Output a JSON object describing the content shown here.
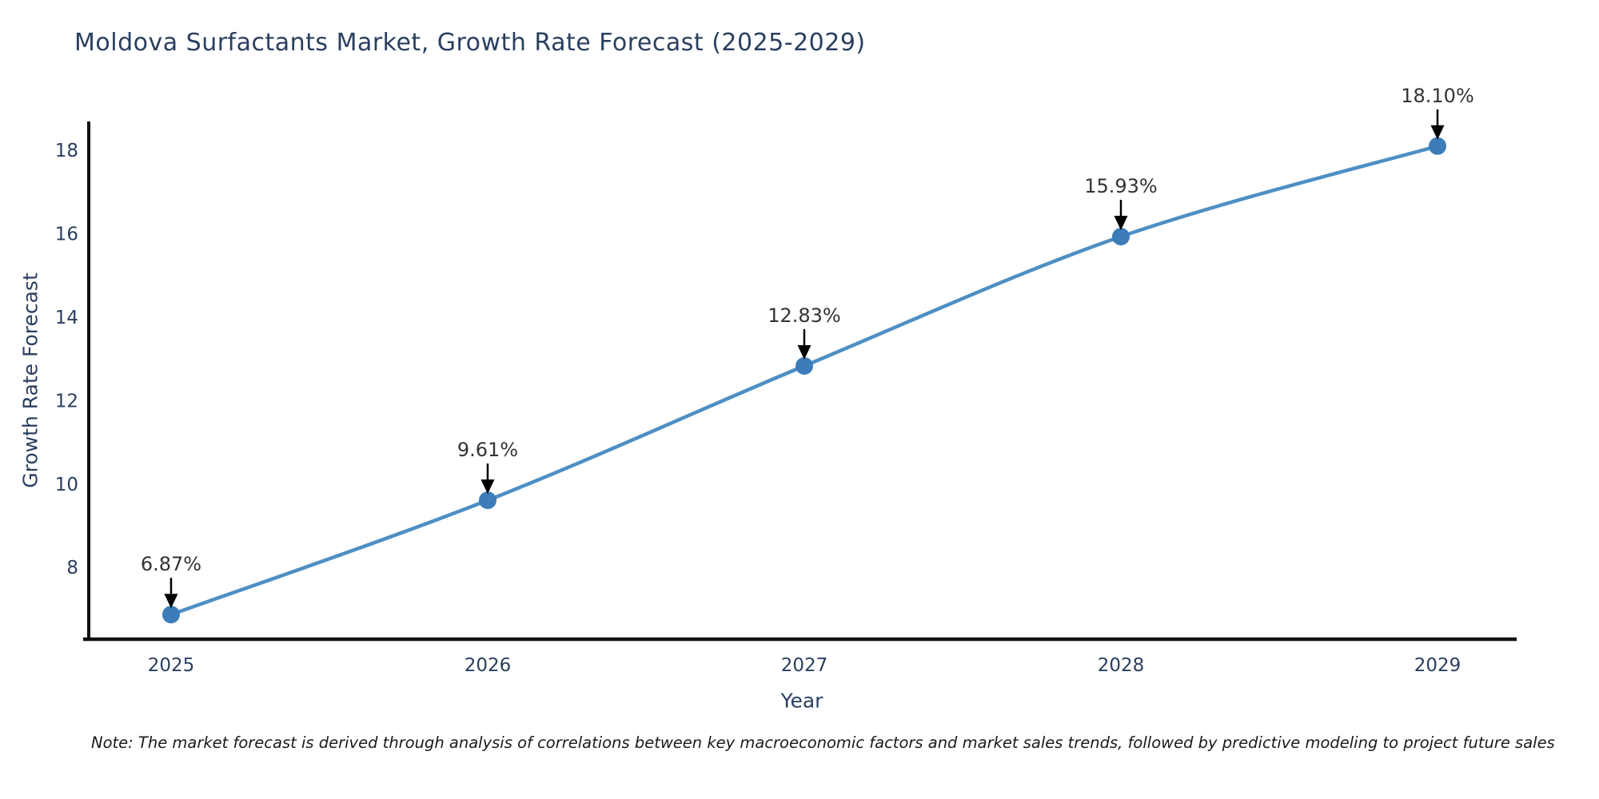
{
  "chart": {
    "title": "Moldova Surfactants Market, Growth Rate Forecast (2025-2029)",
    "xlabel": "Year",
    "ylabel": "Growth Rate Forecast",
    "note": "Note: The market forecast is derived through analysis of correlations between key macroeconomic factors and market sales trends, followed by predictive modeling to project future sales"
  },
  "chart_data": {
    "type": "line",
    "title": "Moldova Surfactants Market, Growth Rate Forecast (2025-2029)",
    "xlabel": "Year",
    "ylabel": "Growth Rate Forecast",
    "x": [
      2025,
      2026,
      2027,
      2028,
      2029
    ],
    "y": [
      6.87,
      9.61,
      12.83,
      15.93,
      18.1
    ],
    "point_labels": [
      "6.87%",
      "9.61%",
      "12.83%",
      "15.93%",
      "18.10%"
    ],
    "xticks": [
      2025,
      2026,
      2027,
      2028,
      2029
    ],
    "yticks": [
      8,
      10,
      12,
      14,
      16,
      18
    ],
    "xlim": [
      2024.74,
      2029.25
    ],
    "ylim": [
      6.28,
      18.69
    ],
    "grid": false,
    "legend": "none",
    "line_shape": "spline",
    "colors": {
      "line": "#4d8fc4",
      "marker": "#3c7cb8",
      "axis_spine": "#111111",
      "axis_text": "#2a3f5f",
      "annotation_text": "#333333",
      "annotation_arrow": "#000000"
    }
  }
}
